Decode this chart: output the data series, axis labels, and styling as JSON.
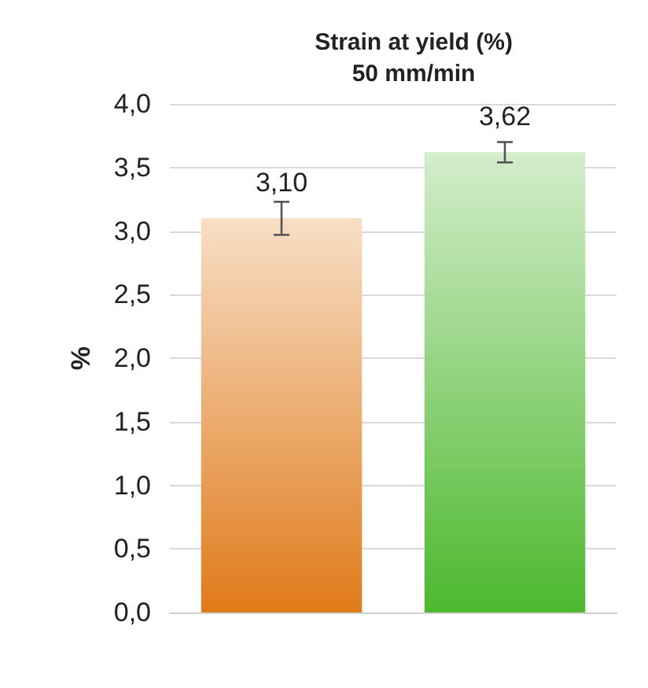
{
  "chart_data": {
    "type": "bar",
    "title": "Strain at yield (%)\n50 mm/min",
    "ylabel": "%",
    "categories": [
      null,
      null
    ],
    "values": [
      3.1,
      3.62
    ],
    "value_labels": [
      "3,10",
      "3,62"
    ],
    "errors": [
      0.13,
      0.08
    ],
    "colors": [
      "#e07b1a",
      "#4db82e"
    ],
    "ylim": [
      0,
      4
    ],
    "yticks": [
      {
        "value": 0,
        "label": "0,0"
      },
      {
        "value": 0.5,
        "label": "0,5"
      },
      {
        "value": 1,
        "label": "1,0"
      },
      {
        "value": 1.5,
        "label": "1,5"
      },
      {
        "value": 2,
        "label": "2,0"
      },
      {
        "value": 2.5,
        "label": "2,5"
      },
      {
        "value": 3,
        "label": "3,0"
      },
      {
        "value": 3.5,
        "label": "3,5"
      },
      {
        "value": 4,
        "label": "4,0"
      }
    ],
    "grid": true
  }
}
